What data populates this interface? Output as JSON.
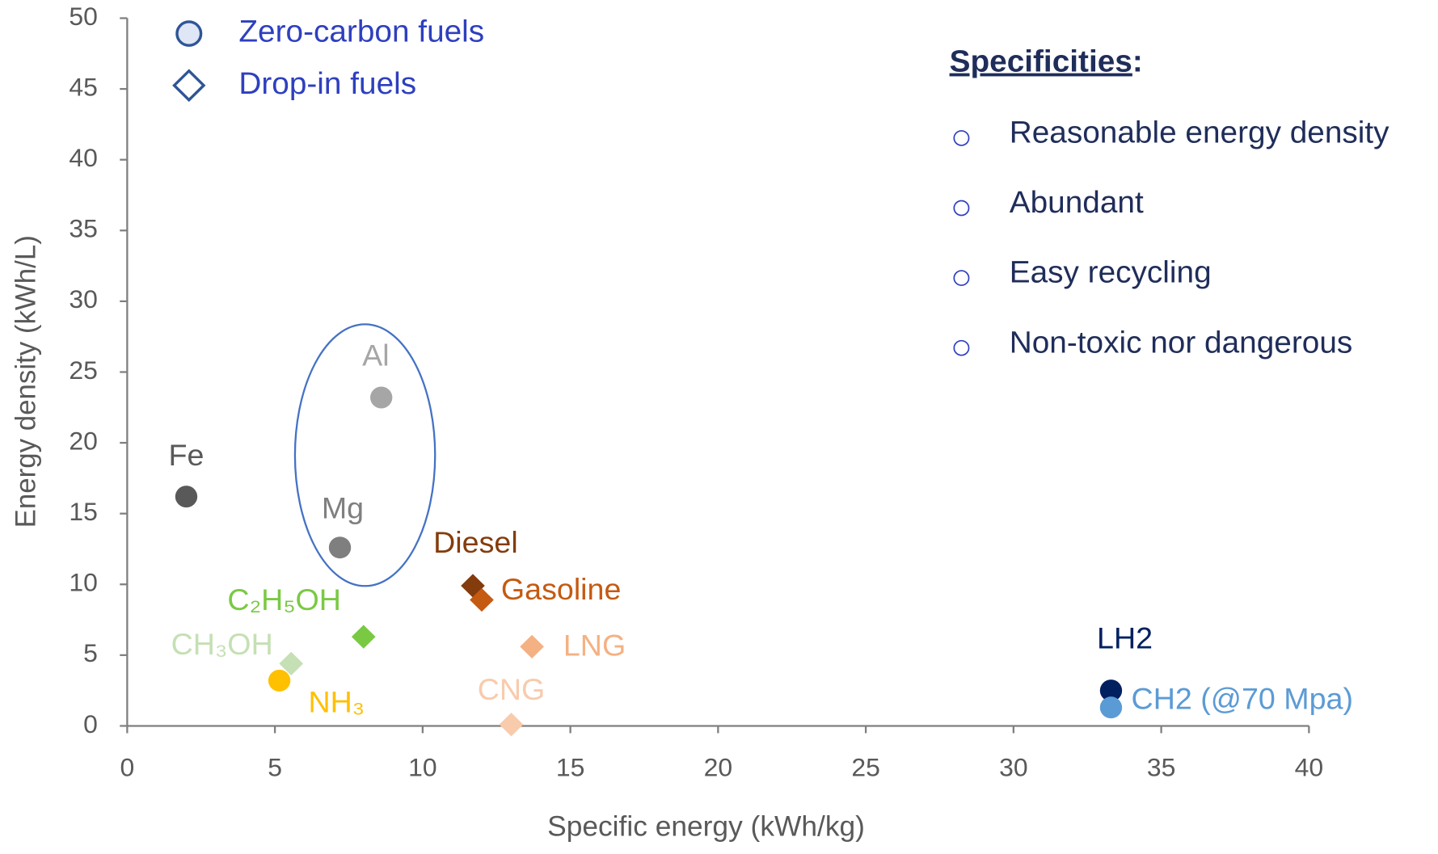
{
  "chart_data": {
    "type": "scatter",
    "x_label": "Specific energy (kWh/kg)",
    "y_label": "Energy density (kWh/L)",
    "xlim": [
      0,
      40
    ],
    "xticks": [
      0,
      5,
      10,
      15,
      20,
      25,
      30,
      35,
      40
    ],
    "ylim": [
      0,
      50
    ],
    "yticks": [
      0,
      5,
      10,
      15,
      20,
      25,
      30,
      35,
      40,
      45,
      50
    ],
    "grid": false,
    "legend": [
      {
        "label": "Zero-carbon fuels",
        "marker": "circle"
      },
      {
        "label": "Drop-in fuels",
        "marker": "diamond"
      }
    ],
    "specificities": {
      "heading": "Specificities",
      "suffix": ":",
      "items": [
        "Reasonable energy density",
        "Abundant",
        "Easy recycling",
        "Non-toxic nor dangerous"
      ]
    },
    "series": [
      {
        "name": "Fe",
        "color": "#595959",
        "marker": "circle",
        "x": [
          2.0
        ],
        "values": [
          16.2
        ]
      },
      {
        "name": "Mg",
        "color": "#7f7f7f",
        "marker": "circle",
        "x": [
          7.2
        ],
        "values": [
          12.6
        ]
      },
      {
        "name": "Al",
        "color": "#a6a6a6",
        "marker": "circle",
        "x": [
          8.6
        ],
        "values": [
          23.2
        ]
      },
      {
        "name": "Diesel",
        "color": "#843c0c",
        "marker": "diamond",
        "x": [
          11.7
        ],
        "values": [
          9.9
        ]
      },
      {
        "name": "Gasoline",
        "color": "#c55a11",
        "marker": "diamond",
        "x": [
          12.0
        ],
        "values": [
          8.9
        ]
      },
      {
        "name": "C₂H₅OH",
        "color": "#7ac943",
        "marker": "diamond",
        "x": [
          8.0
        ],
        "values": [
          6.3
        ]
      },
      {
        "name": "CH₃OH",
        "color": "#c5e0b4",
        "marker": "diamond",
        "x": [
          5.55
        ],
        "values": [
          4.4
        ]
      },
      {
        "name": "NH₃",
        "color": "#ffc000",
        "marker": "circle",
        "x": [
          5.15
        ],
        "values": [
          3.2
        ]
      },
      {
        "name": "LNG",
        "color": "#f4b183",
        "marker": "diamond",
        "x": [
          13.7
        ],
        "values": [
          5.6
        ]
      },
      {
        "name": "CNG",
        "color": "#f8cbad",
        "marker": "diamond",
        "x": [
          13.0
        ],
        "values": [
          0.1
        ]
      },
      {
        "name": "LH2",
        "color": "#002060",
        "marker": "circle",
        "x": [
          33.3
        ],
        "values": [
          2.5
        ]
      },
      {
        "name": "CH2 (@70 Mpa)",
        "color": "#5b9bd5",
        "marker": "circle",
        "x": [
          33.3
        ],
        "values": [
          1.3
        ]
      }
    ]
  }
}
